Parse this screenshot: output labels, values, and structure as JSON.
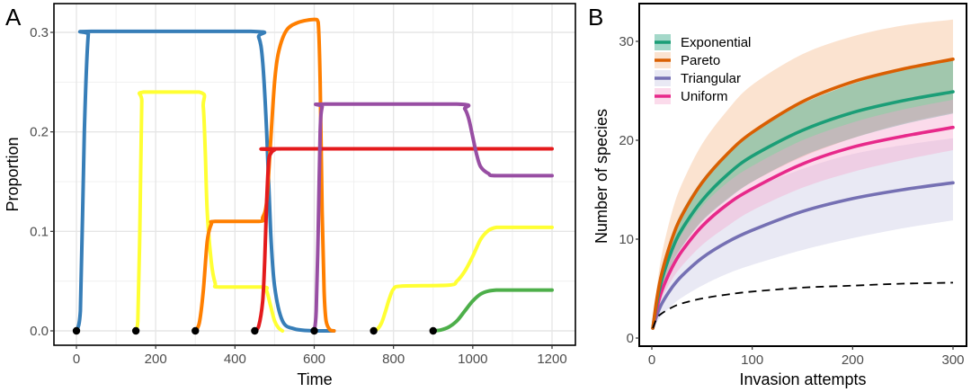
{
  "chart_data": [
    {
      "panel": "A",
      "type": "line",
      "xlabel": "Time",
      "ylabel": "Proportion",
      "xlim": [
        -50,
        1250
      ],
      "ylim": [
        -0.015,
        0.32
      ],
      "x_ticks": [
        0,
        200,
        400,
        600,
        800,
        1000,
        1200
      ],
      "x_tick_labels": [
        "0",
        "200",
        "400",
        "600",
        "800",
        "1000",
        "1200"
      ],
      "y_ticks": [
        0.0,
        0.1,
        0.2,
        0.3
      ],
      "y_tick_labels": [
        "0.0",
        "0.1",
        "0.2",
        "0.3"
      ],
      "grid": true,
      "legend": "none",
      "invasion_points": [
        {
          "x": 0,
          "y": 0
        },
        {
          "x": 150,
          "y": 0
        },
        {
          "x": 300,
          "y": 0
        },
        {
          "x": 450,
          "y": 0
        },
        {
          "x": 600,
          "y": 0
        },
        {
          "x": 750,
          "y": 0
        },
        {
          "x": 900,
          "y": 0
        }
      ],
      "series": [
        {
          "name": "species-1",
          "color": "#377EB8",
          "x": [
            0,
            10,
            20,
            30,
            40,
            440,
            460,
            470,
            480,
            490,
            500,
            520,
            550,
            600,
            650
          ],
          "y": [
            0,
            0.02,
            0.2,
            0.298,
            0.301,
            0.301,
            0.295,
            0.27,
            0.2,
            0.1,
            0.045,
            0.01,
            0.002,
            0.0,
            0.0
          ]
        },
        {
          "name": "species-2",
          "color": "#FFFF33",
          "x": [
            150,
            155,
            160,
            165,
            170,
            310,
            320,
            325,
            330,
            340,
            350,
            360,
            470,
            480,
            490,
            500,
            510,
            520
          ],
          "y": [
            0,
            0.01,
            0.1,
            0.23,
            0.24,
            0.24,
            0.225,
            0.18,
            0.12,
            0.07,
            0.048,
            0.044,
            0.044,
            0.04,
            0.025,
            0.01,
            0.003,
            0.0
          ]
        },
        {
          "name": "species-3",
          "color": "#FF7F00",
          "x": [
            300,
            310,
            320,
            330,
            340,
            350,
            460,
            470,
            480,
            490,
            500,
            510,
            530,
            560,
            600,
            610,
            615,
            620,
            625,
            630,
            640,
            650
          ],
          "y": [
            0,
            0.008,
            0.04,
            0.09,
            0.107,
            0.11,
            0.11,
            0.114,
            0.13,
            0.19,
            0.25,
            0.28,
            0.302,
            0.31,
            0.313,
            0.31,
            0.25,
            0.12,
            0.04,
            0.01,
            0.001,
            0.0
          ]
        },
        {
          "name": "species-4",
          "color": "#E41A1C",
          "x": [
            450,
            460,
            470,
            475,
            480,
            485,
            490,
            500,
            520,
            1200
          ],
          "y": [
            0,
            0.005,
            0.03,
            0.07,
            0.13,
            0.17,
            0.178,
            0.182,
            0.183,
            0.183
          ]
        },
        {
          "name": "species-5",
          "color": "#984EA3",
          "x": [
            600,
            605,
            610,
            615,
            620,
            630,
            960,
            980,
            990,
            1000,
            1010,
            1020,
            1040,
            1060,
            1200
          ],
          "y": [
            0,
            0.02,
            0.1,
            0.2,
            0.225,
            0.228,
            0.228,
            0.223,
            0.213,
            0.195,
            0.177,
            0.165,
            0.158,
            0.156,
            0.156
          ]
        },
        {
          "name": "species-6",
          "color": "#FFFF33",
          "x": [
            750,
            760,
            770,
            780,
            790,
            800,
            820,
            940,
            960,
            980,
            1000,
            1020,
            1040,
            1060,
            1080,
            1200
          ],
          "y": [
            0,
            0.002,
            0.008,
            0.02,
            0.033,
            0.042,
            0.045,
            0.046,
            0.05,
            0.06,
            0.075,
            0.092,
            0.101,
            0.104,
            0.104,
            0.104
          ]
        },
        {
          "name": "species-7",
          "color": "#4DAF4A",
          "x": [
            900,
            920,
            940,
            960,
            980,
            1000,
            1020,
            1040,
            1060,
            1080,
            1200
          ],
          "y": [
            0,
            0.001,
            0.004,
            0.01,
            0.02,
            0.03,
            0.037,
            0.04,
            0.041,
            0.041,
            0.041
          ]
        }
      ]
    },
    {
      "panel": "B",
      "type": "line",
      "xlabel": "Invasion attempts",
      "ylabel": "Number of species",
      "xlim": [
        -12,
        312
      ],
      "ylim": [
        -0.8,
        33.5
      ],
      "x_ticks": [
        0,
        100,
        200,
        300
      ],
      "x_tick_labels": [
        "0",
        "100",
        "200",
        "300"
      ],
      "y_ticks": [
        0,
        10,
        20,
        30
      ],
      "y_tick_labels": [
        "0",
        "10",
        "20",
        "30"
      ],
      "grid": false,
      "legend": "top-left",
      "x": [
        1,
        5,
        10,
        20,
        30,
        50,
        75,
        100,
        150,
        200,
        250,
        300
      ],
      "series": [
        {
          "name": "Exponential",
          "color": "#1B9E77",
          "band_color": "#1B9E77",
          "y": [
            1,
            3.6,
            5.9,
            8.9,
            11.0,
            13.9,
            16.5,
            18.4,
            21.0,
            22.8,
            24.0,
            24.9
          ],
          "lower": [
            1,
            3.0,
            4.9,
            7.4,
            9.2,
            11.8,
            14.0,
            15.8,
            18.4,
            20.2,
            21.6,
            22.7
          ],
          "upper": [
            1,
            4.2,
            6.9,
            10.4,
            12.8,
            16.0,
            18.8,
            20.9,
            23.7,
            25.7,
            27.1,
            28.2
          ]
        },
        {
          "name": "Pareto",
          "color": "#D95F02",
          "band_color": "#F5B98A",
          "y": [
            1,
            4.0,
            6.6,
            10.0,
            12.4,
            15.7,
            18.6,
            20.8,
            23.9,
            25.9,
            27.2,
            28.2
          ],
          "lower": [
            1,
            3.0,
            5.0,
            7.6,
            9.3,
            11.9,
            14.1,
            15.8,
            18.3,
            20.2,
            21.7,
            22.8
          ],
          "upper": [
            1,
            5.1,
            8.5,
            12.7,
            15.6,
            19.6,
            23.0,
            25.6,
            28.7,
            30.5,
            31.6,
            32.2
          ]
        },
        {
          "name": "Triangular",
          "color": "#7570B3",
          "band_color": "#C8C8E4",
          "y": [
            1,
            2.3,
            3.5,
            5.1,
            6.3,
            8.1,
            9.7,
            10.9,
            12.8,
            14.1,
            15.0,
            15.7
          ],
          "lower": [
            1,
            1.6,
            2.3,
            3.3,
            4.1,
            5.3,
            6.5,
            7.4,
            8.9,
            10.1,
            11.1,
            11.9
          ],
          "upper": [
            1,
            3.2,
            5.0,
            7.3,
            9.0,
            11.5,
            13.6,
            15.1,
            17.1,
            18.6,
            19.5,
            20.2
          ]
        },
        {
          "name": "Uniform",
          "color": "#E7298A",
          "band_color": "#F4A6CD",
          "y": [
            1,
            3.0,
            4.8,
            7.1,
            8.8,
            11.3,
            13.5,
            15.1,
            17.6,
            19.3,
            20.4,
            21.3
          ],
          "lower": [
            1,
            2.5,
            4.0,
            5.9,
            7.3,
            9.4,
            11.3,
            12.9,
            15.2,
            16.8,
            18.0,
            19.0
          ],
          "upper": [
            1,
            3.6,
            5.7,
            8.5,
            10.5,
            13.3,
            15.7,
            17.4,
            20.0,
            21.8,
            23.1,
            24.1
          ]
        }
      ],
      "reference_line": {
        "style": "dashed",
        "color": "#000000",
        "x": [
          1,
          5,
          10,
          20,
          30,
          50,
          75,
          100,
          150,
          200,
          250,
          300
        ],
        "y": [
          1,
          2.0,
          2.5,
          3.1,
          3.5,
          4.0,
          4.4,
          4.7,
          5.1,
          5.3,
          5.5,
          5.6
        ]
      }
    }
  ],
  "panel_labels": {
    "a": "A",
    "b": "B"
  }
}
